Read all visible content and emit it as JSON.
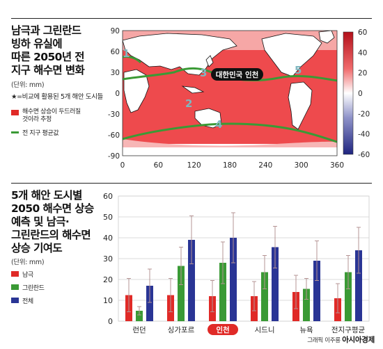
{
  "top": {
    "title": [
      "남극과 그린란드",
      "빙하 유실에",
      "따른 2050년 전",
      "지구 해수면 변화"
    ],
    "unit": "(단위: mm)",
    "note": "★=비교에 활용된 5개 해안 도시들",
    "legend": [
      {
        "label": "해수면 상승이 두드러질 것이라 추정",
        "color": "#e02a27"
      },
      {
        "label": "전 지구 평균값",
        "color": "#3a9a35"
      }
    ],
    "map_callout": "대한민국 인천",
    "star_labels": [
      "1",
      "2",
      "3",
      "4",
      "5"
    ]
  },
  "map_chart": {
    "type": "heatmap",
    "x_ticks": [
      "0",
      "60",
      "120",
      "180",
      "240",
      "300",
      "360"
    ],
    "y_ticks": [
      "90",
      "60",
      "30",
      "0",
      "-30",
      "-60",
      "-90"
    ],
    "colorbar_ticks": [
      "60",
      "40",
      "20",
      "0",
      "-20",
      "-40",
      "-60"
    ],
    "xlim": [
      0,
      360
    ],
    "ylim": [
      -90,
      90
    ],
    "colorbar_range": [
      -60,
      60
    ],
    "colors": {
      "high": "#e8333a",
      "low": "#2b2f8f",
      "mid": "#ffffff"
    }
  },
  "bottom": {
    "title": [
      "5개 해안 도시별",
      "2050 해수면 상승",
      "예측 및 남극·",
      "그린란드의 해수면",
      "상승 기여도"
    ],
    "unit": "(단위: mm)"
  },
  "chart_data": {
    "type": "bar",
    "categories": [
      "런던",
      "싱가포르",
      "인천",
      "시드니",
      "뉴욕",
      "전지구평균"
    ],
    "highlight_category": "인천",
    "y_ticks": [
      "60",
      "50",
      "40",
      "30",
      "20",
      "10",
      "0"
    ],
    "ylim": [
      0,
      60
    ],
    "series": [
      {
        "name": "남극",
        "color": "#e02a27",
        "values": [
          12.5,
          12.5,
          12,
          12,
          14,
          11
        ],
        "errors": [
          8,
          8,
          7.5,
          7,
          8,
          7
        ]
      },
      {
        "name": "그린란드",
        "color": "#3a9a35",
        "values": [
          5,
          26.5,
          28,
          23.5,
          15.5,
          23.5
        ],
        "errors": [
          2,
          9,
          10,
          8,
          5,
          8
        ]
      },
      {
        "name": "전체",
        "color": "#2a3595",
        "values": [
          17,
          39,
          40,
          35.5,
          29,
          34
        ],
        "errors": [
          8,
          11.5,
          12,
          10,
          9.5,
          11
        ]
      }
    ]
  },
  "credit": {
    "prefix": "그래픽 이주룡",
    "brand": "아시아경제"
  }
}
